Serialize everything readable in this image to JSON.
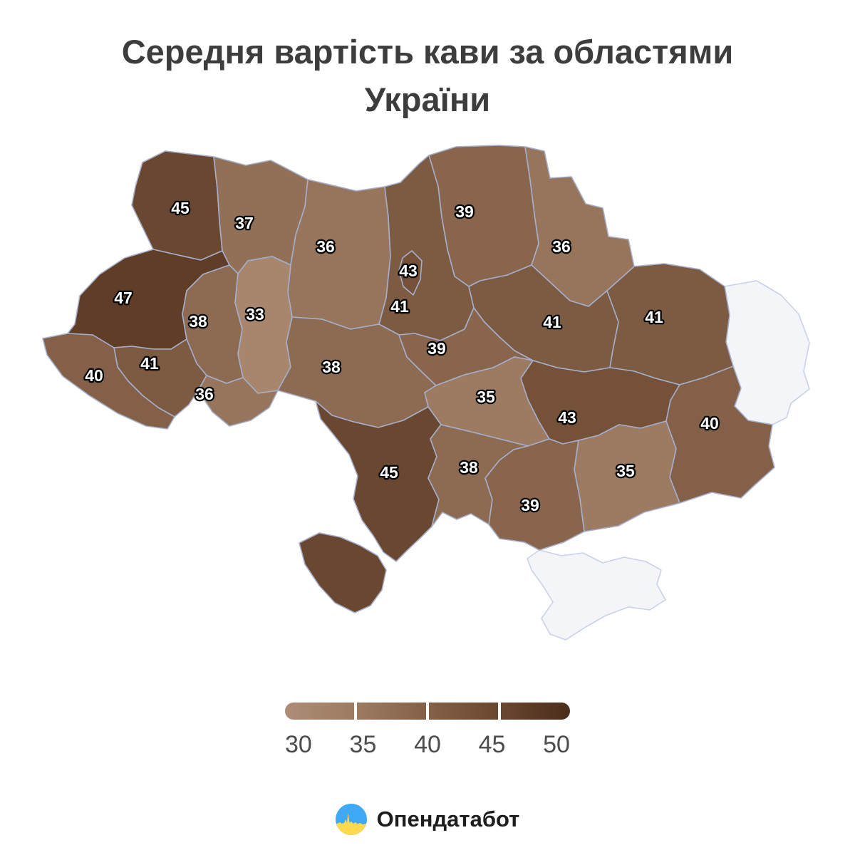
{
  "title": {
    "line1": "Середня вартість кави за областями",
    "line2": "України"
  },
  "map": {
    "border_color": "#a6aec9",
    "no_data_fill": "#f3f5f9",
    "no_data_border": "#c9d2e8",
    "value_label_color": "#ffffff",
    "value_label_outline": "#000000",
    "regions": [
      {
        "id": "volyn",
        "name": "Волинська",
        "value": 45,
        "color": "#6a4730"
      },
      {
        "id": "rivne",
        "name": "Рівненська",
        "value": 37,
        "color": "#927057"
      },
      {
        "id": "zhytomyr",
        "name": "Житомирська",
        "value": 36,
        "color": "#97745c"
      },
      {
        "id": "chernihiv",
        "name": "Чернігівська",
        "value": 39,
        "color": "#88654c"
      },
      {
        "id": "sumy",
        "name": "Сумська",
        "value": 36,
        "color": "#97745c"
      },
      {
        "id": "kyiv",
        "name": "Київська",
        "value": 41,
        "color": "#7d5a42"
      },
      {
        "id": "lviv",
        "name": "Львівська",
        "value": 47,
        "color": "#5f3d27"
      },
      {
        "id": "ternopil",
        "name": "Тернопільська",
        "value": 38,
        "color": "#8d6a52"
      },
      {
        "id": "khmelnytskyi",
        "name": "Хмельницька",
        "value": 33,
        "color": "#a8866e"
      },
      {
        "id": "ivano_frankivsk",
        "name": "Івано-Франківська",
        "value": 41,
        "color": "#7d5a42"
      },
      {
        "id": "zakarpattia",
        "name": "Закарпатська",
        "value": 40,
        "color": "#836047"
      },
      {
        "id": "chernivtsi",
        "name": "Чернівецька",
        "value": 36,
        "color": "#97745c"
      },
      {
        "id": "vinnytsia",
        "name": "Вінницька",
        "value": 38,
        "color": "#8d6a52"
      },
      {
        "id": "cherkasy",
        "name": "Черкаська",
        "value": 39,
        "color": "#88654c"
      },
      {
        "id": "poltava",
        "name": "Полтавська",
        "value": 41,
        "color": "#7d5a42"
      },
      {
        "id": "kharkiv",
        "name": "Харківська",
        "value": 41,
        "color": "#7d5a42"
      },
      {
        "id": "kirovohrad",
        "name": "Кіровоградська",
        "value": 35,
        "color": "#9d7a62"
      },
      {
        "id": "dnipro",
        "name": "Дніпропетровська",
        "value": 43,
        "color": "#745138"
      },
      {
        "id": "donetsk",
        "name": "Донецька",
        "value": 40,
        "color": "#836047"
      },
      {
        "id": "odesa",
        "name": "Одеська",
        "value": 45,
        "color": "#6a4730"
      },
      {
        "id": "mykolaiv",
        "name": "Миколаївська",
        "value": 38,
        "color": "#8d6a52"
      },
      {
        "id": "kherson",
        "name": "Херсонська",
        "value": 39,
        "color": "#88654c"
      },
      {
        "id": "zaporizhzhia",
        "name": "Запорізька",
        "value": 35,
        "color": "#9d7a62"
      },
      {
        "id": "kyiv_city",
        "name": "м. Київ",
        "value": 43,
        "color": "#745138"
      }
    ],
    "no_data_regions": [
      {
        "id": "luhansk",
        "name": "Луганська"
      },
      {
        "id": "crimea",
        "name": "АР Крим"
      }
    ]
  },
  "legend": {
    "ticks": [
      "30",
      "35",
      "40",
      "45",
      "50"
    ],
    "stops": [
      "#ad8d76",
      "#9d7a62",
      "#836047",
      "#6a4730",
      "#4a2d1a"
    ]
  },
  "footer": {
    "brand": "Опендатабот",
    "flag_blue": "#3fa9f5",
    "flag_yellow": "#ffd94e"
  },
  "chart_data": {
    "type": "choropleth",
    "title": "Середня вартість кави за областями України",
    "legend_ticks": [
      30,
      35,
      40,
      45,
      50
    ],
    "color_range": [
      "#ad8d76",
      "#4a2d1a"
    ],
    "regions": [
      {
        "name": "Волинська",
        "value": 45
      },
      {
        "name": "Рівненська",
        "value": 37
      },
      {
        "name": "Житомирська",
        "value": 36
      },
      {
        "name": "Чернігівська",
        "value": 39
      },
      {
        "name": "Сумська",
        "value": 36
      },
      {
        "name": "Київська",
        "value": 41
      },
      {
        "name": "Львівська",
        "value": 47
      },
      {
        "name": "Тернопільська",
        "value": 38
      },
      {
        "name": "Хмельницька",
        "value": 33
      },
      {
        "name": "Івано-Франківська",
        "value": 41
      },
      {
        "name": "Закарпатська",
        "value": 40
      },
      {
        "name": "Чернівецька",
        "value": 36
      },
      {
        "name": "Вінницька",
        "value": 38
      },
      {
        "name": "Черкаська",
        "value": 39
      },
      {
        "name": "Полтавська",
        "value": 41
      },
      {
        "name": "Харківська",
        "value": 41
      },
      {
        "name": "Кіровоградська",
        "value": 35
      },
      {
        "name": "Дніпропетровська",
        "value": 43
      },
      {
        "name": "Донецька",
        "value": 40
      },
      {
        "name": "Одеська",
        "value": 45
      },
      {
        "name": "Миколаївська",
        "value": 38
      },
      {
        "name": "Херсонська",
        "value": 39
      },
      {
        "name": "Запорізька",
        "value": 35
      },
      {
        "name": "м. Київ",
        "value": 43
      },
      {
        "name": "Луганська",
        "value": null
      },
      {
        "name": "АР Крим",
        "value": null
      }
    ]
  }
}
